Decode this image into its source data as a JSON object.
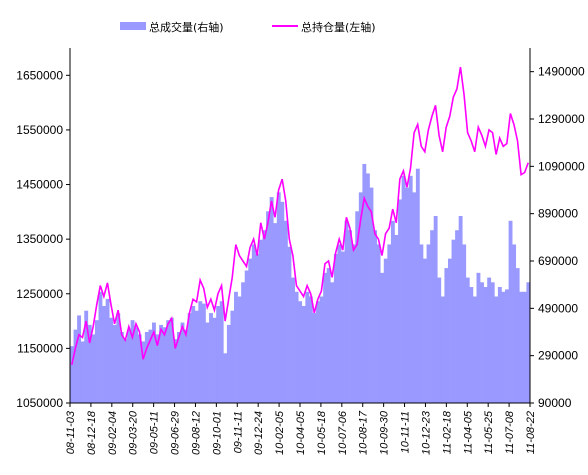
{
  "chart_data": {
    "type": "bar+line",
    "legend": {
      "placement": "top",
      "items": [
        {
          "label": "总成交量(右轴)",
          "color": "#9999ff",
          "kind": "bar"
        },
        {
          "label": "总持仓量(左轴)",
          "color": "#ff00ff",
          "kind": "line"
        }
      ]
    },
    "y_left": {
      "range": [
        1050000,
        1700000
      ],
      "ticks": [
        "1050000",
        "1150000",
        "1250000",
        "1350000",
        "1450000",
        "1550000",
        "1650000"
      ],
      "tick_values": [
        1050000,
        1150000,
        1250000,
        1350000,
        1450000,
        1550000,
        1650000
      ]
    },
    "y_right": {
      "range": [
        90000,
        1590000
      ],
      "ticks": [
        "90000",
        "290000",
        "490000",
        "690000",
        "890000",
        "1090000",
        "1290000",
        "1490000"
      ],
      "tick_values": [
        90000,
        290000,
        490000,
        690000,
        890000,
        1090000,
        1290000,
        1490000
      ]
    },
    "x_ticks": [
      "08-11-03",
      "08-12-18",
      "09-02-04",
      "09-03-20",
      "09-05-11",
      "09-06-29",
      "09-08-12",
      "09-10-01",
      "09-11-11",
      "09-12-24",
      "10-02-05",
      "10-04-05",
      "10-05-18",
      "10-07-06",
      "10-08-17",
      "10-09-30",
      "10-11-11",
      "10-12-23",
      "11-02-18",
      "11-04-05",
      "11-05-25",
      "11-07-08",
      "11-08-22"
    ],
    "series": [
      {
        "name": "总持仓量(左轴)",
        "axis": "left",
        "values": [
          1120000,
          1150000,
          1175000,
          1170000,
          1200000,
          1160000,
          1190000,
          1230000,
          1265000,
          1245000,
          1270000,
          1230000,
          1195000,
          1220000,
          1175000,
          1165000,
          1190000,
          1170000,
          1195000,
          1180000,
          1130000,
          1150000,
          1165000,
          1180000,
          1155000,
          1185000,
          1175000,
          1195000,
          1205000,
          1150000,
          1170000,
          1190000,
          1175000,
          1215000,
          1240000,
          1235000,
          1275000,
          1260000,
          1225000,
          1240000,
          1220000,
          1250000,
          1265000,
          1200000,
          1240000,
          1280000,
          1340000,
          1320000,
          1310000,
          1300000,
          1335000,
          1350000,
          1320000,
          1380000,
          1350000,
          1380000,
          1420000,
          1390000,
          1440000,
          1460000,
          1420000,
          1350000,
          1320000,
          1265000,
          1255000,
          1245000,
          1265000,
          1250000,
          1215000,
          1240000,
          1255000,
          1305000,
          1310000,
          1280000,
          1325000,
          1350000,
          1330000,
          1390000,
          1370000,
          1330000,
          1340000,
          1385000,
          1425000,
          1410000,
          1400000,
          1360000,
          1350000,
          1320000,
          1360000,
          1370000,
          1405000,
          1380000,
          1460000,
          1475000,
          1445000,
          1480000,
          1545000,
          1560000,
          1520000,
          1510000,
          1550000,
          1575000,
          1595000,
          1540000,
          1510000,
          1555000,
          1575000,
          1610000,
          1625000,
          1665000,
          1615000,
          1545000,
          1530000,
          1510000,
          1555000,
          1540000,
          1520000,
          1550000,
          1545000,
          1505000,
          1535000,
          1520000,
          1525000,
          1580000,
          1560000,
          1530000,
          1468000,
          1472000,
          1490000
        ]
      },
      {
        "name": "总成交量(右轴)",
        "axis": "right",
        "values": [
          330000,
          400000,
          460000,
          350000,
          480000,
          420000,
          380000,
          440000,
          560000,
          500000,
          530000,
          450000,
          420000,
          470000,
          390000,
          360000,
          400000,
          440000,
          410000,
          380000,
          350000,
          390000,
          400000,
          430000,
          380000,
          420000,
          410000,
          440000,
          450000,
          360000,
          390000,
          430000,
          400000,
          470000,
          500000,
          480000,
          520000,
          510000,
          430000,
          470000,
          450000,
          500000,
          520000,
          300000,
          420000,
          480000,
          560000,
          540000,
          600000,
          650000,
          700000,
          760000,
          720000,
          780000,
          820000,
          900000,
          960000,
          850000,
          980000,
          940000,
          860000,
          750000,
          620000,
          560000,
          520000,
          500000,
          560000,
          540000,
          470000,
          520000,
          540000,
          640000,
          660000,
          600000,
          720000,
          760000,
          730000,
          860000,
          820000,
          760000,
          900000,
          980000,
          1100000,
          1060000,
          1000000,
          820000,
          760000,
          640000,
          700000,
          760000,
          860000,
          800000,
          950000,
          1050000,
          1000000,
          1050000,
          980000,
          1080000,
          760000,
          700000,
          760000,
          820000,
          880000,
          620000,
          540000,
          660000,
          700000,
          780000,
          820000,
          880000,
          760000,
          620000,
          580000,
          540000,
          640000,
          600000,
          580000,
          620000,
          600000,
          540000,
          580000,
          560000,
          570000,
          860000,
          760000,
          660000,
          560000,
          560000,
          600000
        ]
      }
    ]
  }
}
